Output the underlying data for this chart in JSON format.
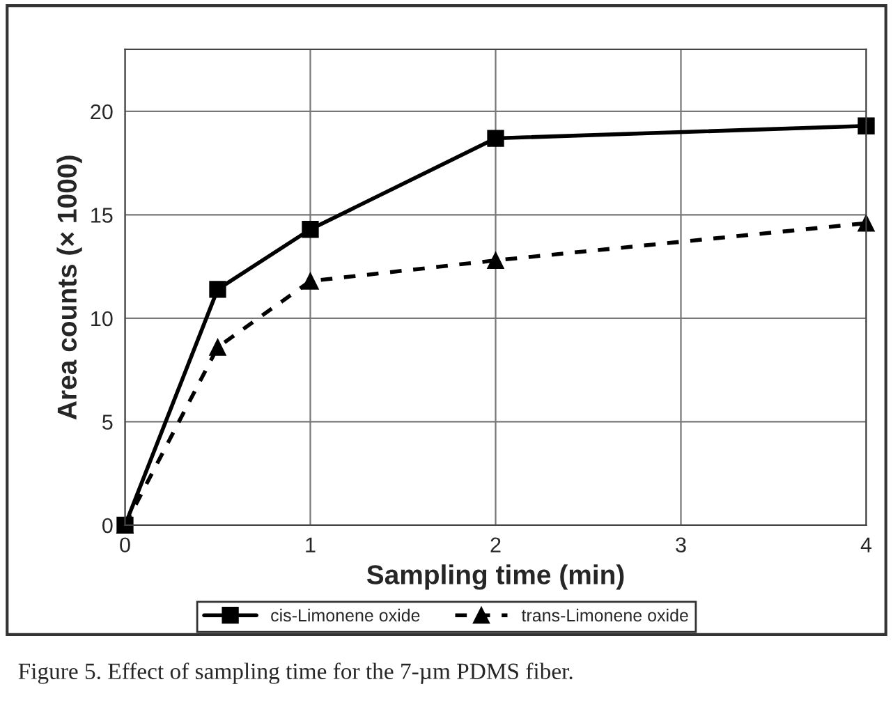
{
  "chart_data": {
    "type": "line",
    "xlabel": "Sampling time (min)",
    "ylabel": "Area counts (× 1000)",
    "x": [
      0,
      0.5,
      1,
      2,
      4
    ],
    "series": [
      {
        "name": "cis-Limonene oxide",
        "color": "#000000",
        "values": [
          0,
          11.4,
          14.3,
          18.7,
          19.3
        ],
        "marker": "square",
        "line_style": "solid"
      },
      {
        "name": "trans-Limonene oxide",
        "color": "#000000",
        "values": [
          0,
          8.6,
          11.8,
          12.8,
          14.6
        ],
        "marker": "triangle",
        "line_style": "dashed"
      }
    ],
    "xlim": [
      0,
      4
    ],
    "xticks": [
      0,
      1,
      2,
      3,
      4
    ],
    "ylim": [
      0,
      23
    ],
    "yticks": [
      0,
      5,
      10,
      15,
      20
    ],
    "grid": true,
    "legend": "bottom",
    "annotations": [
      "Figure 5. Effect of sampling time for the 7-µm PDMS fiber."
    ]
  }
}
